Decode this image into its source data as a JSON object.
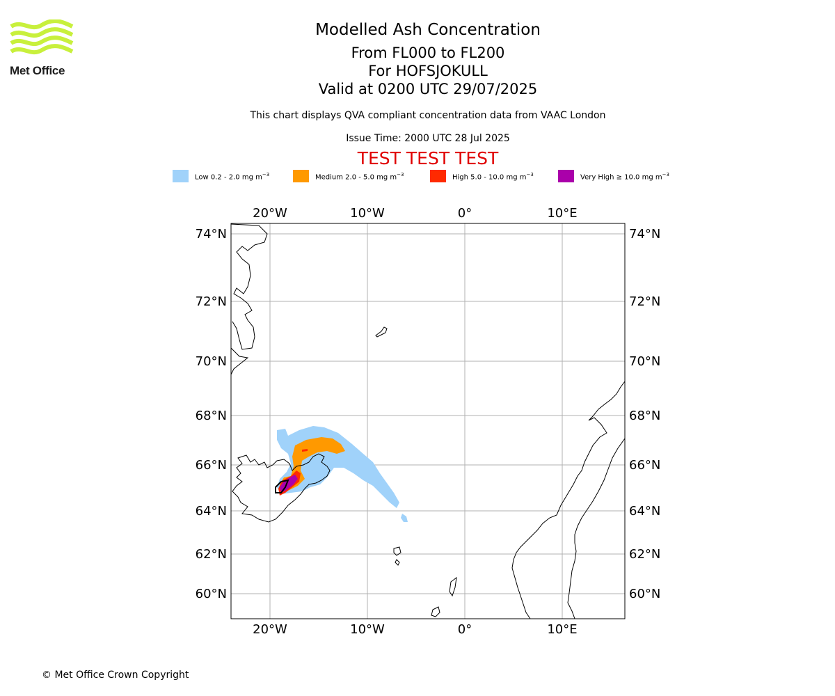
{
  "header": {
    "title": "Modelled Ash Concentration",
    "levels": "From FL000 to FL200",
    "volcano": "For HOFSJOKULL",
    "valid": "Valid at 0200 UTC 29/07/2025",
    "description": "This chart displays QVA compliant concentration data from VAAC London",
    "issue_time": "Issue Time: 2000 UTC 28 Jul 2025",
    "test_banner": "TEST TEST TEST"
  },
  "logo": {
    "text": "Met Office",
    "accent_color": "#c8f03c"
  },
  "legend": [
    {
      "label": "Low 0.2 - 2.0 mg m",
      "unit_exp": "−3",
      "color": "#a0d2fa"
    },
    {
      "label": "Medium 2.0 - 5.0 mg m",
      "unit_exp": "−3",
      "color": "#ff9900"
    },
    {
      "label": "High 5.0 - 10.0 mg m",
      "unit_exp": "−3",
      "color": "#ff2a00"
    },
    {
      "label": "Very High  ≥  10.0 mg m",
      "unit_exp": "−3",
      "color": "#aa00aa"
    }
  ],
  "map": {
    "lon_labels": [
      "20°W",
      "10°W",
      "0°",
      "10°E"
    ],
    "lat_labels": [
      "74°N",
      "72°N",
      "70°N",
      "68°N",
      "66°N",
      "64°N",
      "62°N",
      "60°N"
    ],
    "gridline_color": "#b0b0b0",
    "coastline_color": "#000000"
  },
  "footer": {
    "copyright": "© Met Office Crown Copyright"
  }
}
